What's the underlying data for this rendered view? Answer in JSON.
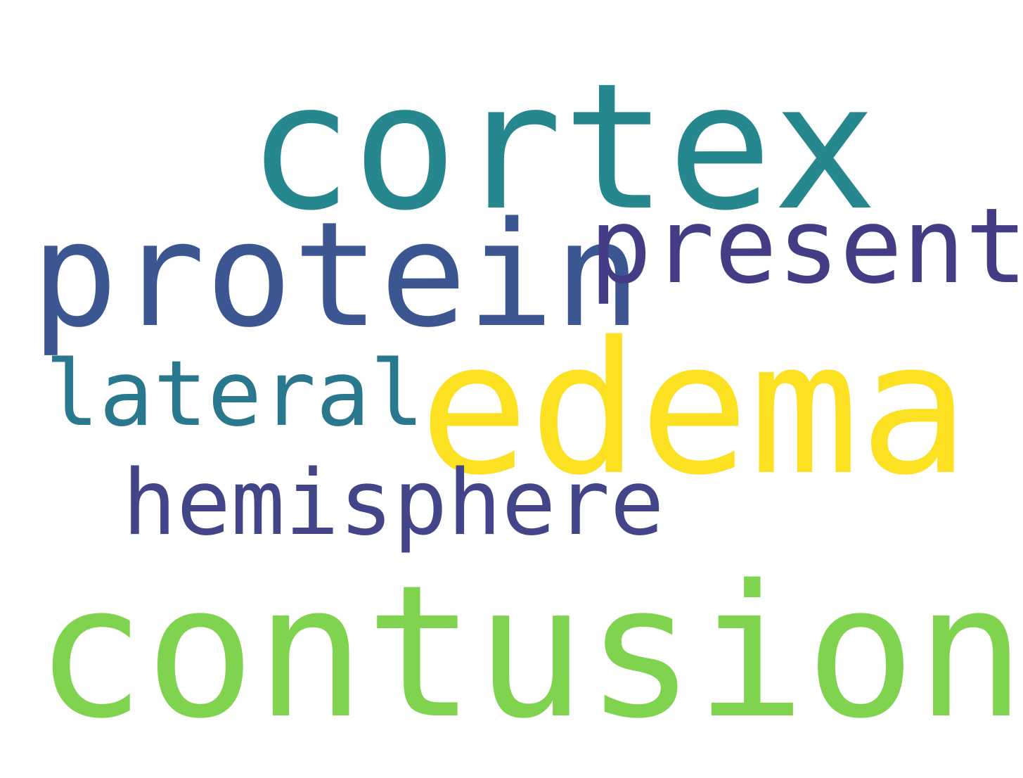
{
  "words": {
    "cortex": {
      "text": "cortex",
      "color": "#26888e"
    },
    "protein": {
      "text": "protein",
      "color": "#3c5692"
    },
    "present": {
      "text": "present",
      "color": "#453c86"
    },
    "edema": {
      "text": "edema",
      "color": "#fbe122"
    },
    "lateral": {
      "text": "lateral",
      "color": "#2a788e"
    },
    "hemisphere": {
      "text": "hemisphere",
      "color": "#424689"
    },
    "contusion": {
      "text": "contusion",
      "color": "#7fd34e"
    }
  }
}
